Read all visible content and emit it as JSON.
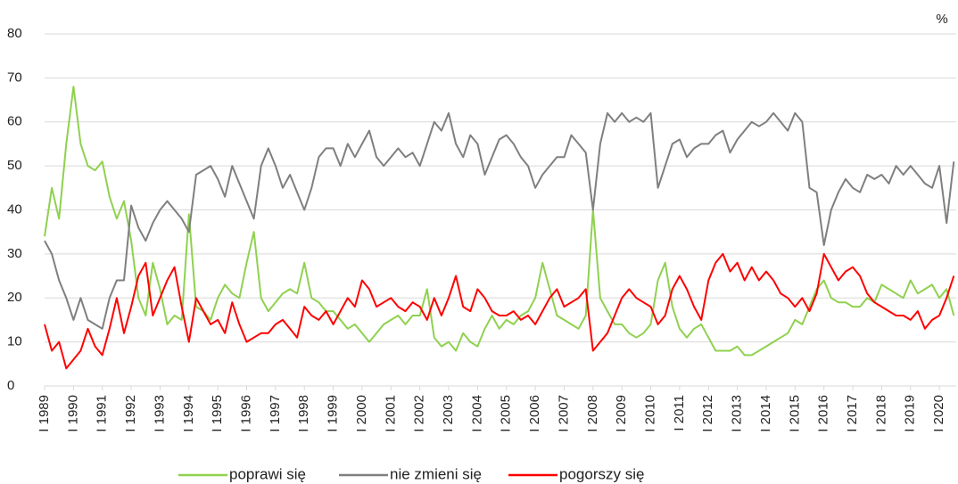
{
  "chart_data": {
    "type": "line",
    "unit_label": "%",
    "x": [
      "1989-01",
      "1989-04",
      "1989-07",
      "1989-10",
      "1990-01",
      "1990-04",
      "1990-07",
      "1990-10",
      "1991-01",
      "1991-04",
      "1991-07",
      "1991-10",
      "1992-01",
      "1992-04",
      "1992-07",
      "1992-10",
      "1993-01",
      "1993-04",
      "1993-07",
      "1993-10",
      "1994-01",
      "1994-04",
      "1994-07",
      "1994-10",
      "1995-01",
      "1995-04",
      "1995-07",
      "1995-10",
      "1996-01",
      "1996-04",
      "1996-07",
      "1996-10",
      "1997-01",
      "1997-04",
      "1997-07",
      "1997-10",
      "1998-01",
      "1998-04",
      "1998-07",
      "1998-10",
      "1999-01",
      "1999-04",
      "1999-07",
      "1999-10",
      "2000-01",
      "2000-04",
      "2000-07",
      "2000-10",
      "2001-01",
      "2001-04",
      "2001-07",
      "2001-10",
      "2002-01",
      "2002-04",
      "2002-07",
      "2002-10",
      "2003-01",
      "2003-04",
      "2003-07",
      "2003-10",
      "2004-01",
      "2004-04",
      "2004-07",
      "2004-10",
      "2005-01",
      "2005-04",
      "2005-07",
      "2005-10",
      "2006-01",
      "2006-04",
      "2006-07",
      "2006-10",
      "2007-01",
      "2007-04",
      "2007-07",
      "2007-10",
      "2008-01",
      "2008-04",
      "2008-07",
      "2008-10",
      "2009-01",
      "2009-04",
      "2009-07",
      "2009-10",
      "2010-01",
      "2010-04",
      "2010-07",
      "2010-10",
      "2011-01",
      "2011-04",
      "2011-07",
      "2011-10",
      "2012-01",
      "2012-04",
      "2012-07",
      "2012-10",
      "2013-01",
      "2013-04",
      "2013-07",
      "2013-10",
      "2014-01",
      "2014-04",
      "2014-07",
      "2014-10",
      "2015-01",
      "2015-04",
      "2015-07",
      "2015-10",
      "2016-01",
      "2016-04",
      "2016-07",
      "2016-10",
      "2017-01",
      "2017-04",
      "2017-07",
      "2017-10",
      "2018-01",
      "2018-04",
      "2018-07",
      "2018-10",
      "2019-01",
      "2019-04",
      "2019-07",
      "2019-10",
      "2020-01",
      "2020-04",
      "2020-07"
    ],
    "series": [
      {
        "name": "poprawi się",
        "color": "#8fd14f",
        "values": [
          34,
          45,
          38,
          55,
          68,
          55,
          50,
          49,
          51,
          43,
          38,
          42,
          33,
          20,
          16,
          28,
          22,
          14,
          16,
          15,
          39,
          18,
          17,
          15,
          20,
          23,
          21,
          20,
          28,
          35,
          20,
          17,
          19,
          21,
          22,
          21,
          28,
          20,
          19,
          17,
          17,
          15,
          13,
          14,
          12,
          10,
          12,
          14,
          15,
          16,
          14,
          16,
          16,
          22,
          11,
          9,
          10,
          8,
          12,
          10,
          9,
          13,
          16,
          13,
          15,
          14,
          16,
          17,
          20,
          28,
          22,
          16,
          15,
          14,
          13,
          16,
          40,
          20,
          17,
          14,
          14,
          12,
          11,
          12,
          14,
          24,
          28,
          18,
          13,
          11,
          13,
          14,
          11,
          8,
          8,
          8,
          9,
          7,
          7,
          8,
          9,
          10,
          11,
          12,
          15,
          14,
          18,
          22,
          24,
          20,
          19,
          19,
          18,
          18,
          20,
          19,
          23,
          22,
          21,
          20,
          24,
          21,
          22,
          23,
          20,
          22,
          16
        ]
      },
      {
        "name": "nie zmieni się",
        "color": "#7f7f7f",
        "values": [
          33,
          30,
          24,
          20,
          15,
          20,
          15,
          14,
          13,
          20,
          24,
          24,
          41,
          36,
          33,
          37,
          40,
          42,
          40,
          38,
          35,
          48,
          49,
          50,
          47,
          43,
          50,
          46,
          42,
          38,
          50,
          54,
          50,
          45,
          48,
          44,
          40,
          45,
          52,
          54,
          54,
          50,
          55,
          52,
          55,
          58,
          52,
          50,
          52,
          54,
          52,
          53,
          50,
          55,
          60,
          58,
          62,
          55,
          52,
          57,
          55,
          48,
          52,
          56,
          57,
          55,
          52,
          50,
          45,
          48,
          50,
          52,
          52,
          57,
          55,
          53,
          40,
          55,
          62,
          60,
          62,
          60,
          61,
          60,
          62,
          45,
          50,
          55,
          56,
          52,
          54,
          55,
          55,
          57,
          58,
          53,
          56,
          58,
          60,
          59,
          60,
          62,
          60,
          58,
          62,
          60,
          45,
          44,
          32,
          40,
          44,
          47,
          45,
          44,
          48,
          47,
          48,
          46,
          50,
          48,
          50,
          48,
          46,
          45,
          50,
          37,
          51
        ]
      },
      {
        "name": "pogorszy się",
        "color": "#ff0000",
        "values": [
          14,
          8,
          10,
          4,
          6,
          8,
          13,
          9,
          7,
          13,
          20,
          12,
          18,
          25,
          28,
          16,
          20,
          24,
          27,
          18,
          10,
          20,
          17,
          14,
          15,
          12,
          19,
          14,
          10,
          11,
          12,
          12,
          14,
          15,
          13,
          11,
          18,
          16,
          15,
          17,
          14,
          17,
          20,
          18,
          24,
          22,
          18,
          19,
          20,
          18,
          17,
          19,
          18,
          15,
          20,
          16,
          20,
          25,
          18,
          17,
          22,
          20,
          17,
          16,
          16,
          17,
          15,
          16,
          14,
          17,
          20,
          22,
          18,
          19,
          20,
          22,
          8,
          10,
          12,
          16,
          20,
          22,
          20,
          19,
          18,
          14,
          16,
          22,
          25,
          22,
          18,
          15,
          24,
          28,
          30,
          26,
          28,
          24,
          27,
          24,
          26,
          24,
          21,
          20,
          18,
          20,
          17,
          21,
          30,
          27,
          24,
          26,
          27,
          25,
          21,
          19,
          18,
          17,
          16,
          16,
          15,
          17,
          13,
          15,
          16,
          20,
          25
        ]
      }
    ],
    "xlim": [
      "1989-01",
      "2020-08"
    ],
    "xticks": [
      {
        "value": "1989-01",
        "label": "I 1989"
      },
      {
        "value": "1990-01",
        "label": "I 1990"
      },
      {
        "value": "1991-01",
        "label": "I 1991"
      },
      {
        "value": "1992-01",
        "label": "I 1992"
      },
      {
        "value": "1993-01",
        "label": "I 1993"
      },
      {
        "value": "1994-01",
        "label": "I 1994"
      },
      {
        "value": "1995-01",
        "label": "I 1995"
      },
      {
        "value": "1996-01",
        "label": "I 1996"
      },
      {
        "value": "1997-01",
        "label": "I 1997"
      },
      {
        "value": "1998-01",
        "label": "I 1998"
      },
      {
        "value": "1999-01",
        "label": "I 1999"
      },
      {
        "value": "2000-01",
        "label": "I 2000"
      },
      {
        "value": "2001-01",
        "label": "I 2001"
      },
      {
        "value": "2002-01",
        "label": "I 2002"
      },
      {
        "value": "2003-01",
        "label": "I 2003"
      },
      {
        "value": "2004-01",
        "label": "I 2004"
      },
      {
        "value": "2005-01",
        "label": "I 2005"
      },
      {
        "value": "2006-01",
        "label": "I 2006"
      },
      {
        "value": "2007-01",
        "label": "I 2007"
      },
      {
        "value": "2008-01",
        "label": "I 2008"
      },
      {
        "value": "2009-01",
        "label": "I 2009"
      },
      {
        "value": "2010-01",
        "label": "I 2010"
      },
      {
        "value": "2011-01",
        "label": "I 2011"
      },
      {
        "value": "2012-01",
        "label": "I 2012"
      },
      {
        "value": "2013-01",
        "label": "I 2013"
      },
      {
        "value": "2014-01",
        "label": "I 2014"
      },
      {
        "value": "2015-01",
        "label": "I 2015"
      },
      {
        "value": "2016-01",
        "label": "I 2016"
      },
      {
        "value": "2017-01",
        "label": "I 2017"
      },
      {
        "value": "2018-01",
        "label": "I 2018"
      },
      {
        "value": "2019-01",
        "label": "I 2019"
      },
      {
        "value": "2020-01",
        "label": "I 2020"
      }
    ],
    "ylim": [
      0,
      80
    ],
    "yticks": [
      0,
      10,
      20,
      30,
      40,
      50,
      60,
      70,
      80
    ],
    "grid": true,
    "legend": "bottom"
  }
}
